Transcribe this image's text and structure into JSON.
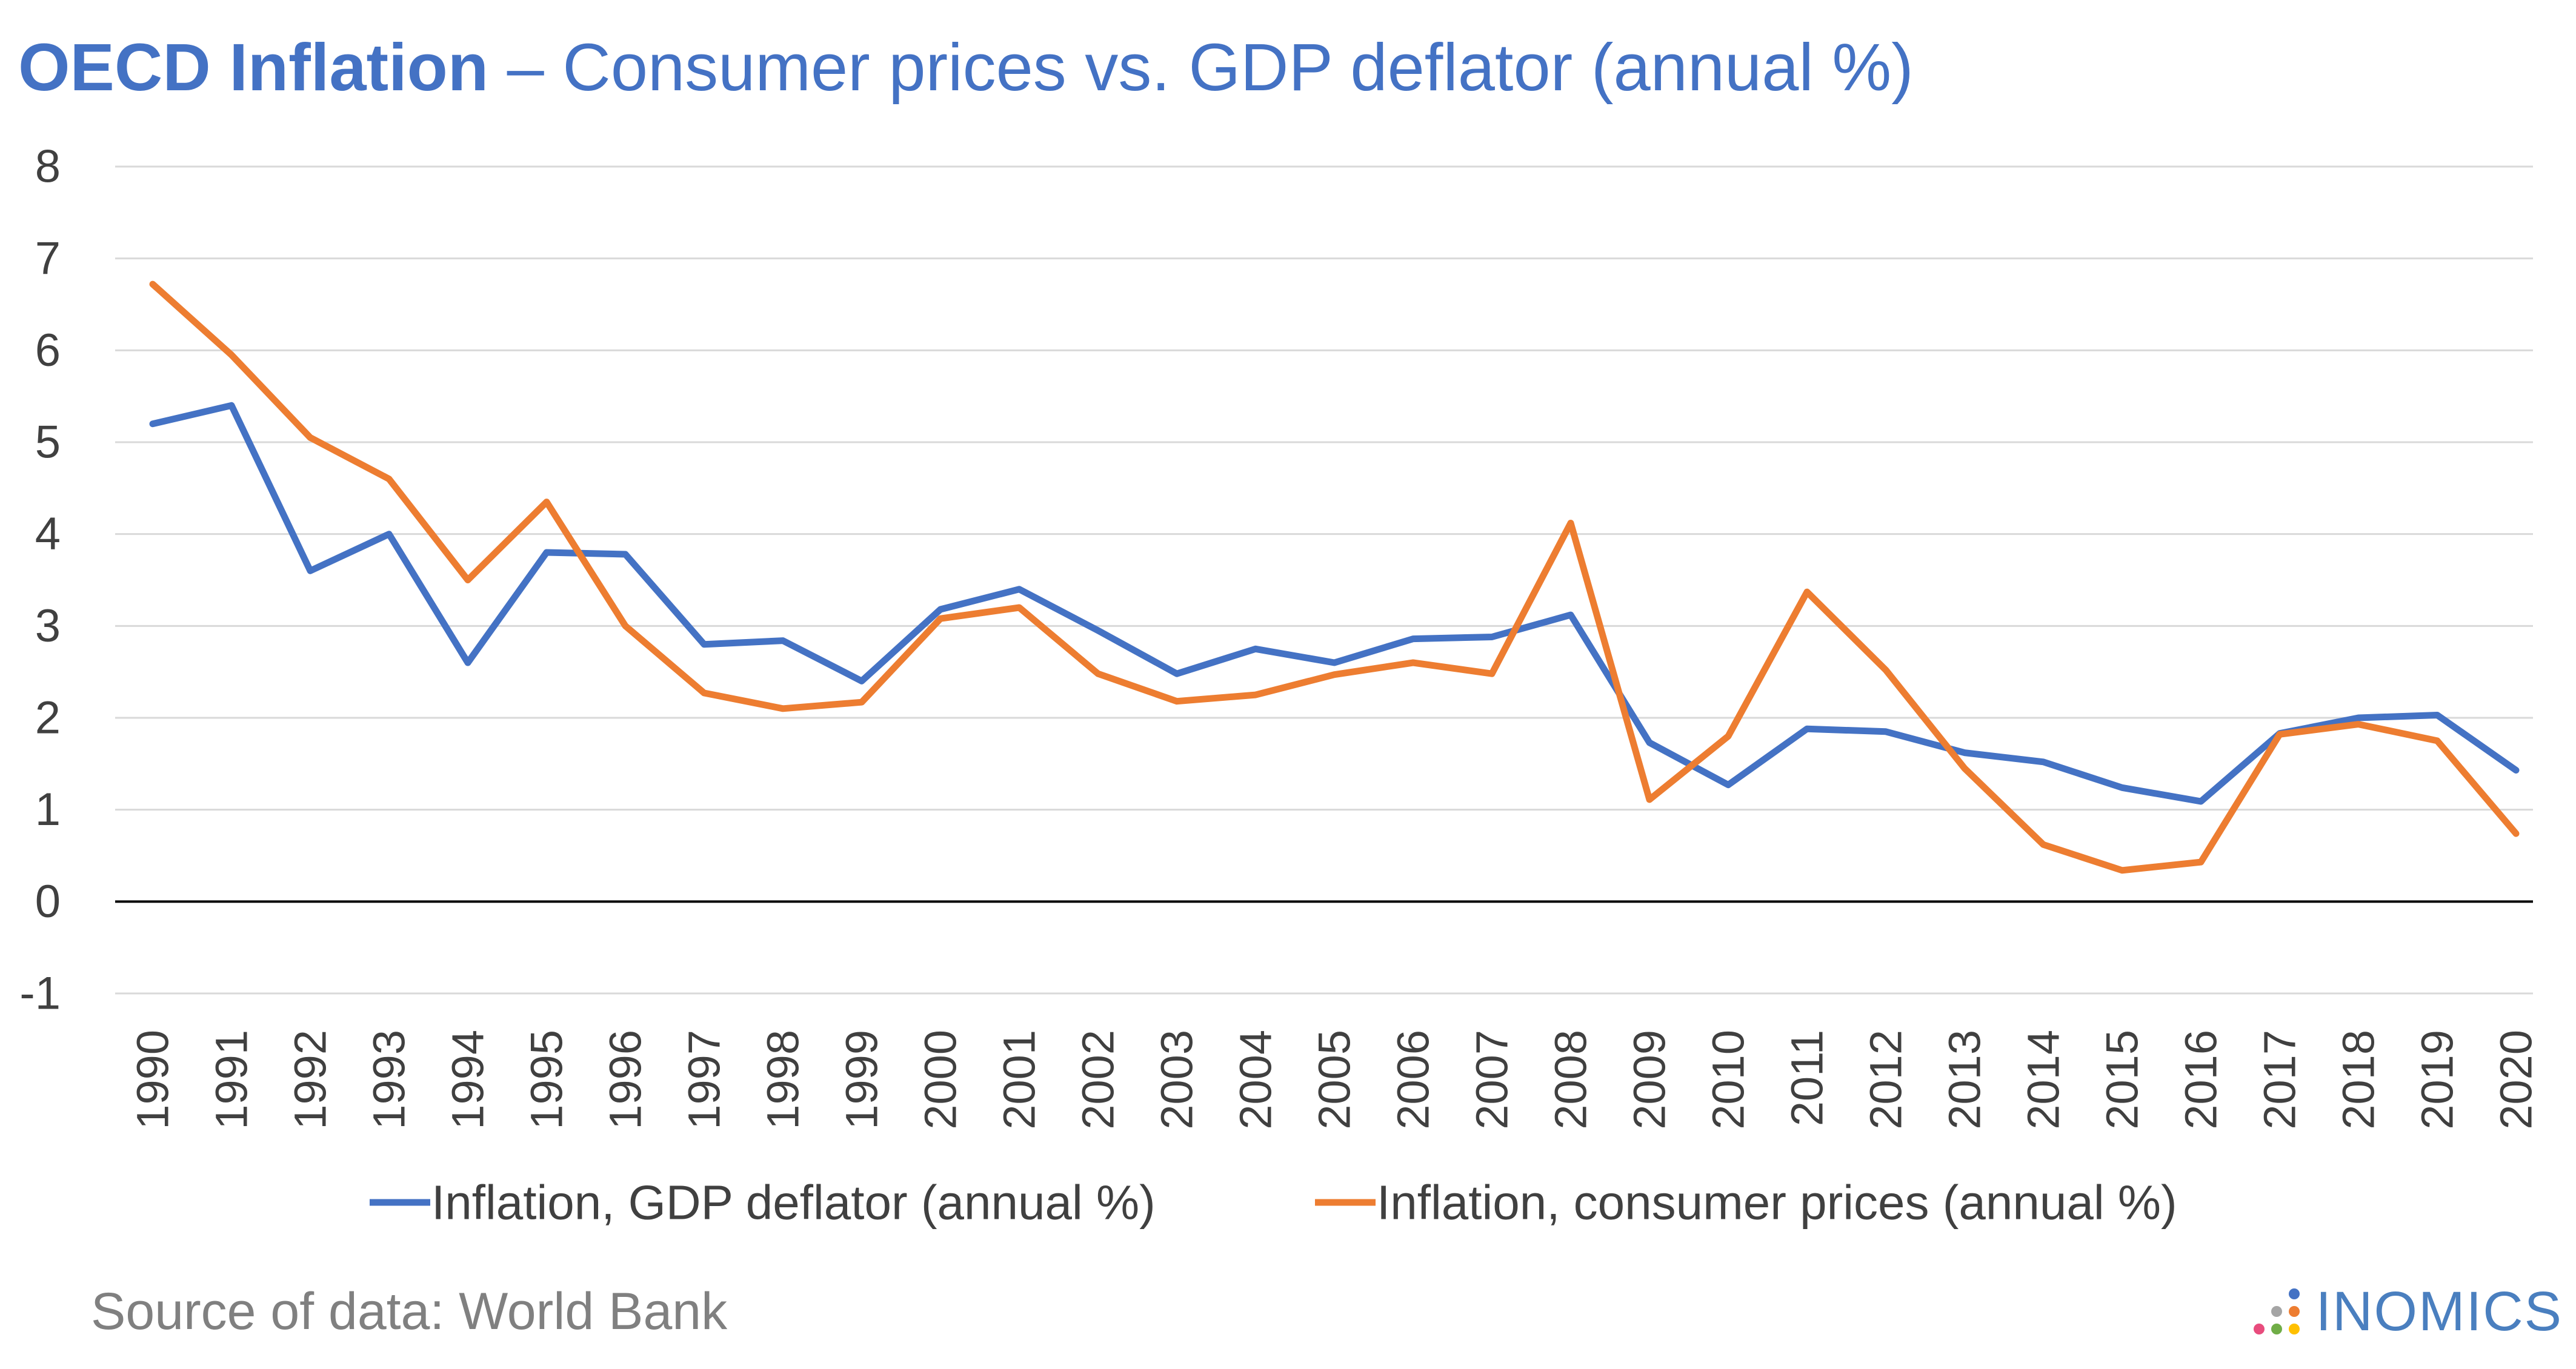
{
  "title": {
    "bold": "OECD Inflation",
    "rest": " – Consumer prices vs. GDP deflator (annual %)"
  },
  "footer": {
    "source": "Source of data: World Bank",
    "brand": "INOMICS",
    "brand_icon": "colored-dots-logo-icon",
    "brand_color": "#4A7FBF",
    "brand_dot_colors": [
      "#4472C4",
      "#ED7D31",
      "#A5A5A5",
      "#FFC000",
      "#70AD47",
      "#E84C7D"
    ]
  },
  "colors": {
    "title": "#4472C4",
    "gdp_series": "#4472C4",
    "cpi_series": "#ED7D31",
    "grid": "#D9D9D9",
    "axis": "#000000",
    "tick_text": "#404040",
    "source_text": "#808080"
  },
  "chart_data": {
    "type": "line",
    "title": "OECD Inflation – Consumer prices vs. GDP deflator (annual %)",
    "xlabel": "",
    "ylabel": "",
    "ylim": [
      -1,
      8
    ],
    "yticks": [
      "-1",
      "0",
      "1",
      "2",
      "3",
      "4",
      "5",
      "6",
      "7",
      "8"
    ],
    "grid": true,
    "legend_position": "bottom",
    "categories": [
      "1990",
      "1991",
      "1992",
      "1993",
      "1994",
      "1995",
      "1996",
      "1997",
      "1998",
      "1999",
      "2000",
      "2001",
      "2002",
      "2003",
      "2004",
      "2005",
      "2006",
      "2007",
      "2008",
      "2009",
      "2010",
      "2011",
      "2012",
      "2013",
      "2014",
      "2015",
      "2016",
      "2017",
      "2018",
      "2019",
      "2020"
    ],
    "series": [
      {
        "name": "Inflation, GDP deflator (annual %)",
        "color": "#4472C4",
        "values": [
          5.2,
          5.4,
          3.6,
          4.0,
          2.6,
          3.8,
          3.78,
          2.8,
          2.84,
          2.4,
          3.18,
          3.4,
          2.95,
          2.48,
          2.75,
          2.6,
          2.86,
          2.88,
          3.12,
          1.73,
          1.27,
          1.88,
          1.85,
          1.62,
          1.52,
          1.24,
          1.09,
          1.83,
          2.0,
          2.03,
          1.43
        ]
      },
      {
        "name": "Inflation, consumer prices (annual %)",
        "color": "#ED7D31",
        "values": [
          6.72,
          5.95,
          5.05,
          4.6,
          3.5,
          4.35,
          3.0,
          2.27,
          2.1,
          2.17,
          3.08,
          3.2,
          2.48,
          2.18,
          2.25,
          2.47,
          2.6,
          2.48,
          4.12,
          1.11,
          1.8,
          3.37,
          2.52,
          1.45,
          0.62,
          0.34,
          0.43,
          1.82,
          1.93,
          1.75,
          0.74
        ]
      }
    ]
  }
}
